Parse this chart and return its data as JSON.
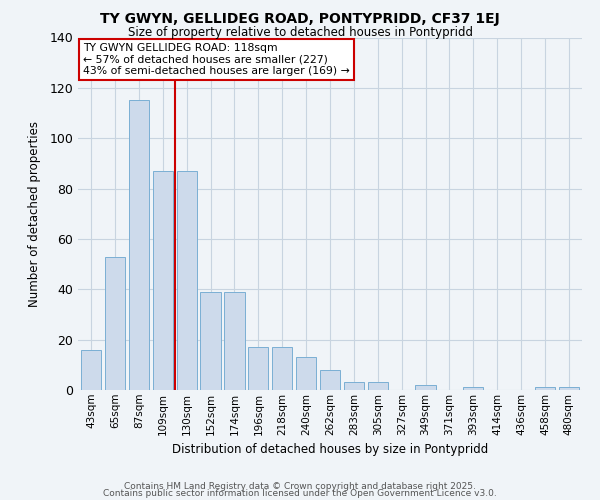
{
  "title": "TY GWYN, GELLIDEG ROAD, PONTYPRIDD, CF37 1EJ",
  "subtitle": "Size of property relative to detached houses in Pontypridd",
  "xlabel": "Distribution of detached houses by size in Pontypridd",
  "ylabel": "Number of detached properties",
  "categories": [
    "43sqm",
    "65sqm",
    "87sqm",
    "109sqm",
    "130sqm",
    "152sqm",
    "174sqm",
    "196sqm",
    "218sqm",
    "240sqm",
    "262sqm",
    "283sqm",
    "305sqm",
    "327sqm",
    "349sqm",
    "371sqm",
    "393sqm",
    "414sqm",
    "436sqm",
    "458sqm",
    "480sqm"
  ],
  "values": [
    16,
    53,
    115,
    87,
    87,
    39,
    39,
    17,
    17,
    13,
    8,
    3,
    3,
    0,
    2,
    0,
    1,
    0,
    0,
    1,
    1
  ],
  "bar_color": "#cddaeb",
  "bar_edge_color": "#7aafd4",
  "vline_x": 3.5,
  "vline_color": "#cc0000",
  "annotation_text": "TY GWYN GELLIDEG ROAD: 118sqm\n← 57% of detached houses are smaller (227)\n43% of semi-detached houses are larger (169) →",
  "annotation_box_color": "#cc0000",
  "ylim": [
    0,
    140
  ],
  "yticks": [
    0,
    20,
    40,
    60,
    80,
    100,
    120,
    140
  ],
  "grid_color": "#c8d4e0",
  "bg_color": "#f0f4f8",
  "footer1": "Contains HM Land Registry data © Crown copyright and database right 2025.",
  "footer2": "Contains public sector information licensed under the Open Government Licence v3.0."
}
